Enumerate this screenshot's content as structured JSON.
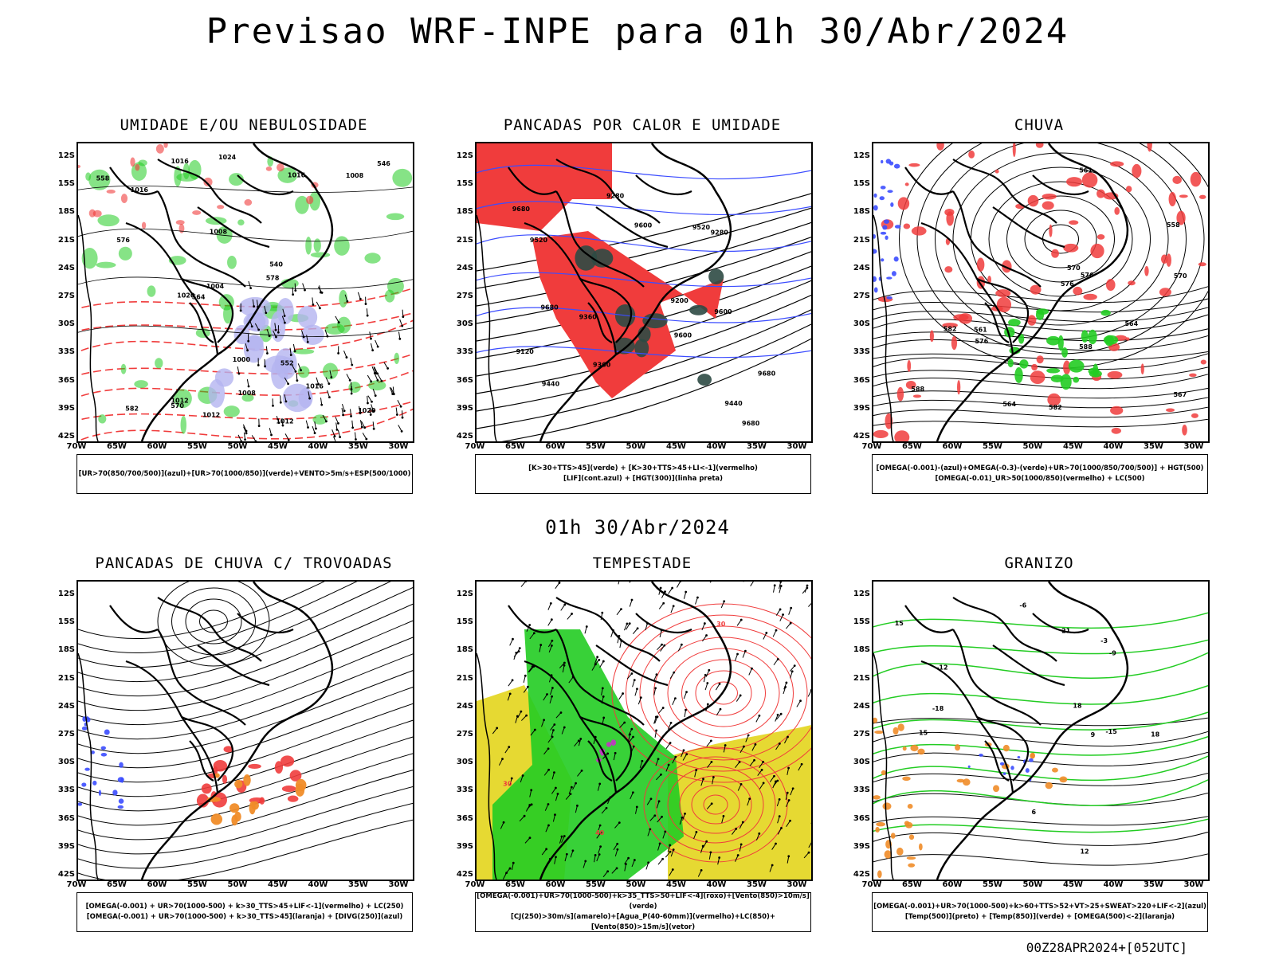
{
  "title": "Previsao WRF-INPE  para 01h 30/Abr/2024",
  "mid_title": "01h 30/Abr/2024",
  "footer": "00Z28APR2024+[052UTC]",
  "lat_labels": [
    "12S",
    "15S",
    "18S",
    "21S",
    "24S",
    "27S",
    "30S",
    "33S",
    "36S",
    "39S",
    "42S"
  ],
  "lon_labels": [
    "70W",
    "65W",
    "60W",
    "55W",
    "50W",
    "45W",
    "40W",
    "35W",
    "30W"
  ],
  "colors": {
    "red": "#f03c3c",
    "green": "#22cc22",
    "blue": "#3b4cff",
    "lavender": "#b4b4f0",
    "orange": "#f08c28",
    "yellow": "#e6d932",
    "darkgreen": "#2d4a44",
    "magenta": "#c832c8"
  },
  "panels": [
    {
      "title": "UMIDADE E/OU NEBULOSIDADE",
      "legend": [
        "[UR>70(850/700/500)](azul)+[UR>70(1000/850)](verde)+VENTO>5m/s+ESP(500/1000)"
      ],
      "labels": [
        "1012",
        "1012",
        "1012",
        "1016",
        "1016",
        "1016",
        "1020",
        "1020",
        "1024",
        "1008",
        "1008",
        "1008",
        "1004",
        "1000",
        "1016",
        "578",
        "576",
        "570",
        "564",
        "558",
        "552",
        "546",
        "540",
        "582"
      ]
    },
    {
      "title": "PANCADAS POR CALOR E UMIDADE",
      "legend": [
        "[K>30+TTS>45](verde) + [K>30+TTS>45+LI<-1](vermelho)",
        "[LIF](cont.azul) + [HGT(300)](linha preta)"
      ],
      "labels": [
        "9680",
        "9680",
        "9600",
        "9680",
        "9680",
        "9520",
        "9440",
        "9360",
        "9280",
        "9600",
        "9520",
        "9440",
        "9360",
        "9280",
        "9200",
        "9120",
        "9600"
      ]
    },
    {
      "title": "CHUVA",
      "legend": [
        "[OMEGA(-0.001)-(azul)+OMEGA(-0.3)-(verde)+UR>70(1000/850/700/500)] + HGT(500)",
        "[OMEGA(-0.01)_UR>50(1000/850)(vermelho) + LC(500)"
      ],
      "labels": [
        "588",
        "588",
        "582",
        "576",
        "570",
        "564",
        "561",
        "576",
        "570",
        "567",
        "564",
        "561",
        "558",
        "576",
        "582"
      ]
    },
    {
      "title": "PANCADAS DE CHUVA C/ TROVOADAS",
      "legend": [
        "[OMEGA(-0.001) + UR>70(1000-500) + k>30_TTS>45+LIF<-1](vermelho) + LC(250)",
        "[OMEGA(-0.001) + UR>70(1000-500) + k>30_TTS>45](laranja) + [DIVG(250)](azul)"
      ],
      "labels": []
    },
    {
      "title": "TEMPESTADE",
      "legend": [
        "[OMEGA(-0.001)+UR>70(1000-500)+k>35_TTS>50+LIF<-4](roxo)+[Vento(850)>10m/s](verde)",
        "[CJ(250)>30m/s](amarelo)+[Agua_P(40-60mm)](vermelho)+LC(850)+[Vento(850)>15m/s](vetor)"
      ],
      "labels": [
        "30",
        "40",
        "30"
      ]
    },
    {
      "title": "GRANIZO",
      "legend": [
        "[OMEGA(-0.001)+UR>70(1000-500)+k>60+TTS>52+VT>25+SWEAT>220+LIF<-2](azul)",
        "[Temp(500)](preto) + [Temp(850)](verde) + [OMEGA(500)<-2](laranja)"
      ],
      "labels": [
        "-3",
        "-6",
        "-9",
        "-12",
        "-15",
        "-18",
        "6",
        "9",
        "12",
        "15",
        "18",
        "21",
        "15",
        "18"
      ]
    }
  ]
}
